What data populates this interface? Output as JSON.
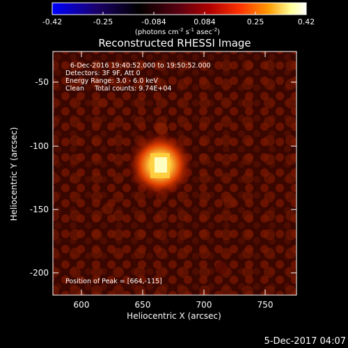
{
  "colorbar": {
    "ticks": [
      "-0.42",
      "-0.25",
      "-0.084",
      "0.084",
      "0.25",
      "0.42"
    ],
    "units_main": "(photons cm",
    "units_exp1": "-2",
    "units_mid": " s",
    "units_exp2": "-1",
    "units_end": " asec",
    "units_exp3": "-2",
    "units_close": ")",
    "colors": [
      "#0000ff",
      "#1a0066",
      "#000000",
      "#5a0010",
      "#b00000",
      "#ff3300",
      "#ff9900",
      "#ffff99",
      "#ffffff"
    ]
  },
  "image": {
    "title": "Reconstructed RHESSI Image",
    "info_lines": [
      "6-Dec-2016 19:40:52.000 to 19:50:52.000",
      "Detectors: 3F 9F, Att 0",
      "Energy Range: 3.0 - 6.0 keV",
      "Clean     Total counts: 9.74E+04"
    ],
    "peak_label": "Position of Peak = [664,-115]",
    "peak_position": [
      664,
      -115
    ]
  },
  "axes": {
    "xlabel": "Heliocentric X (arcsec)",
    "ylabel": "Heliocentric Y (arcsec)",
    "xticks": [
      "600",
      "650",
      "700",
      "750"
    ],
    "yticks": [
      "-50",
      "-100",
      "-150",
      "-200"
    ]
  },
  "footer": {
    "timestamp": "5-Dec-2017 04:07"
  }
}
